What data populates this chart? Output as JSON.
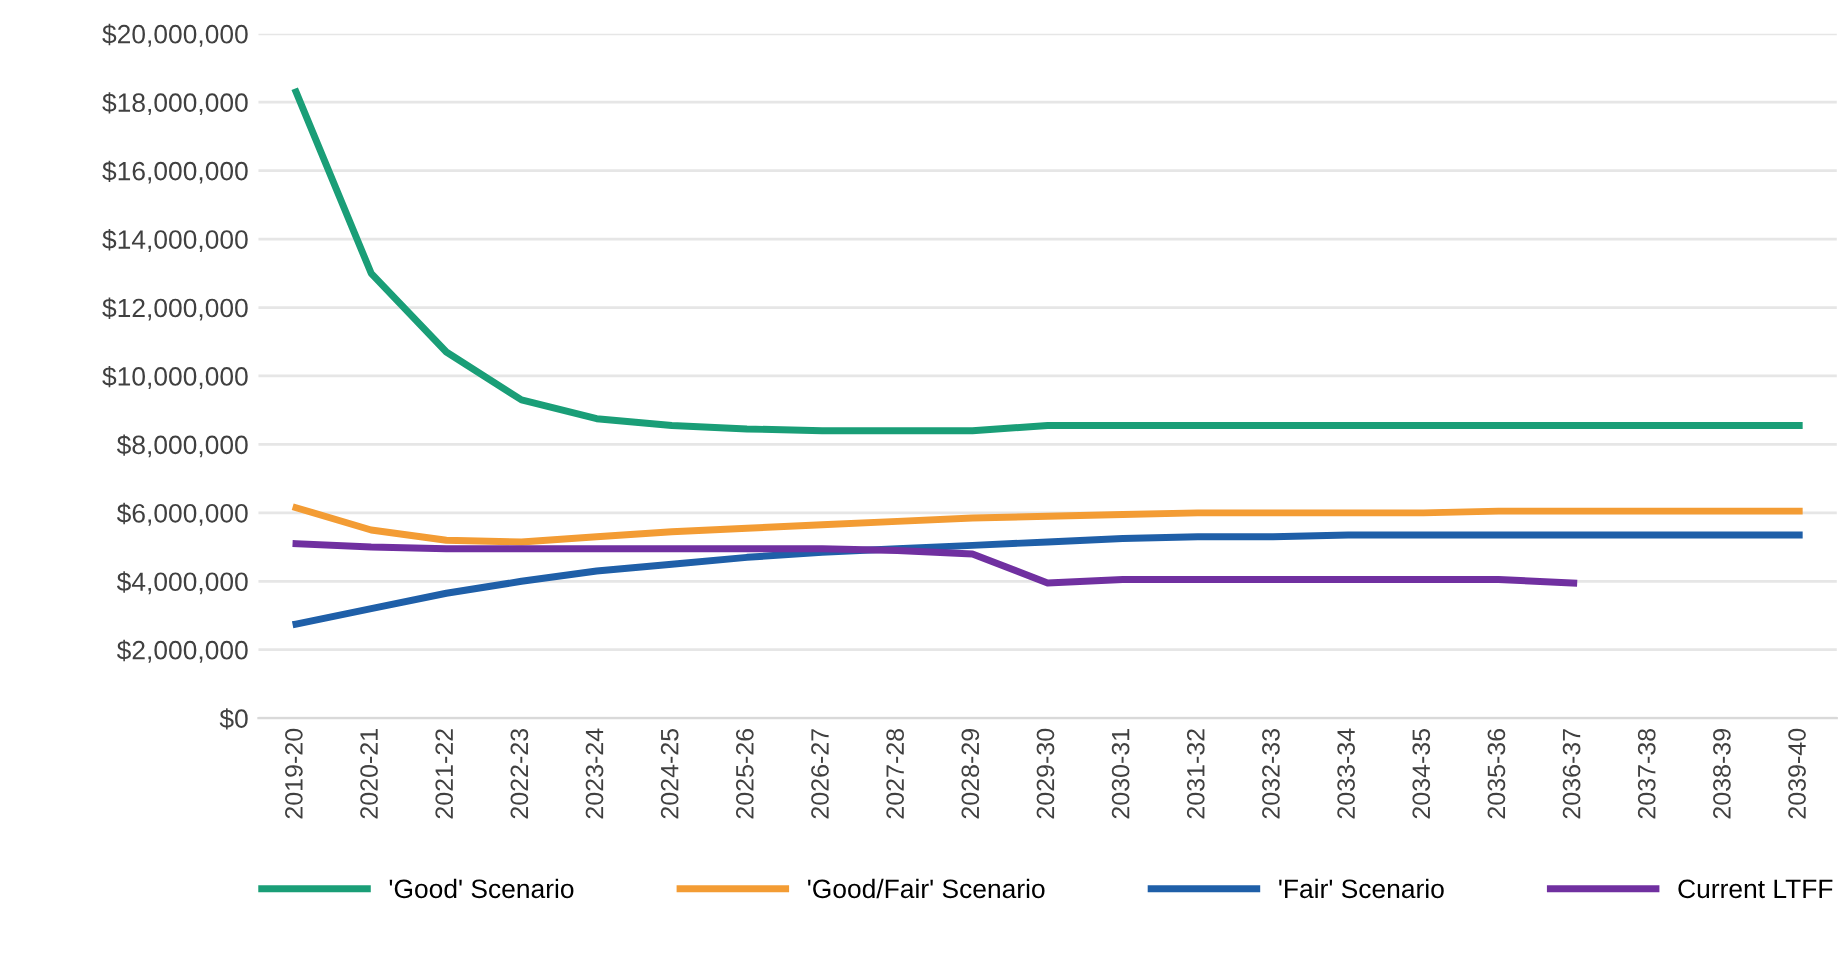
{
  "chart_data": {
    "type": "line",
    "categories": [
      "2019-20",
      "2020-21",
      "2021-22",
      "2022-23",
      "2023-24",
      "2024-25",
      "2025-26",
      "2026-27",
      "2027-28",
      "2028-29",
      "2029-30",
      "2030-31",
      "2031-32",
      "2032-33",
      "2033-34",
      "2034-35",
      "2035-36",
      "2036-37",
      "2037-38",
      "2038-39",
      "2039-40"
    ],
    "series": [
      {
        "name": "'Good' Scenario",
        "color": "#1a9e77",
        "values": [
          18300000,
          13000000,
          10700000,
          9300000,
          8750000,
          8550000,
          8450000,
          8400000,
          8400000,
          8400000,
          8550000,
          8550000,
          8550000,
          8550000,
          8550000,
          8550000,
          8550000,
          8550000,
          8550000,
          8550000,
          8550000
        ]
      },
      {
        "name": "'Good/Fair' Scenario",
        "color": "#f39c34",
        "values": [
          6150000,
          5500000,
          5200000,
          5150000,
          5300000,
          5450000,
          5550000,
          5650000,
          5750000,
          5850000,
          5900000,
          5950000,
          6000000,
          6000000,
          6000000,
          6000000,
          6050000,
          6050000,
          6050000,
          6050000,
          6050000
        ]
      },
      {
        "name": "'Fair' Scenario",
        "color": "#1f5fa8",
        "values": [
          2750000,
          3200000,
          3650000,
          4000000,
          4300000,
          4500000,
          4700000,
          4850000,
          4950000,
          5050000,
          5150000,
          5250000,
          5300000,
          5300000,
          5350000,
          5350000,
          5350000,
          5350000,
          5350000,
          5350000,
          5350000
        ]
      },
      {
        "name": "Current LTFF",
        "color": "#7030a0",
        "values": [
          5100000,
          5000000,
          4950000,
          4950000,
          4950000,
          4950000,
          4950000,
          4950000,
          4900000,
          4800000,
          3950000,
          4050000,
          4050000,
          4050000,
          4050000,
          4050000,
          4050000,
          3950000,
          null,
          null,
          null
        ]
      }
    ],
    "ylim": [
      0,
      20000000
    ],
    "yticks": [
      {
        "value": 0,
        "label": "$0"
      },
      {
        "value": 2000000,
        "label": "$2,000,000"
      },
      {
        "value": 4000000,
        "label": "$4,000,000"
      },
      {
        "value": 6000000,
        "label": "$6,000,000"
      },
      {
        "value": 8000000,
        "label": "$8,000,000"
      },
      {
        "value": 10000000,
        "label": "$10,000,000"
      },
      {
        "value": 12000000,
        "label": "$12,000,000"
      },
      {
        "value": 14000000,
        "label": "$14,000,000"
      },
      {
        "value": 16000000,
        "label": "$16,000,000"
      },
      {
        "value": 18000000,
        "label": "$18,000,000"
      },
      {
        "value": 20000000,
        "label": "$20,000,000"
      }
    ],
    "grid": "y",
    "legend": "bottom",
    "marker": "none",
    "line_style": "solid"
  }
}
